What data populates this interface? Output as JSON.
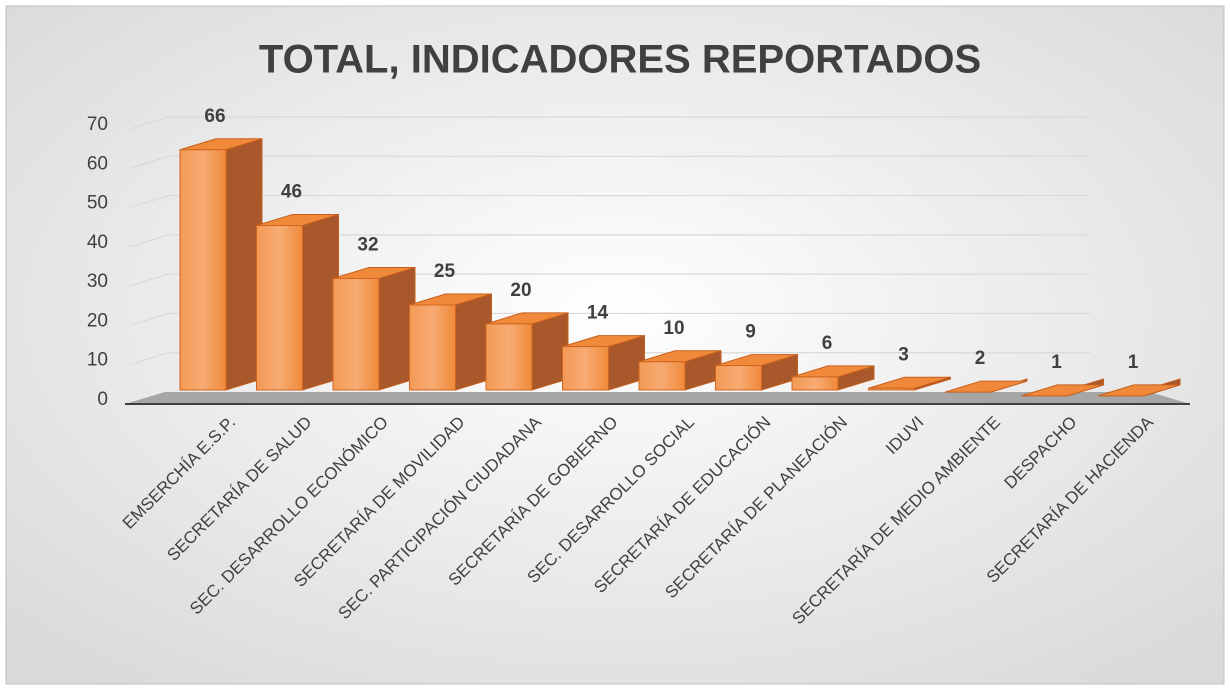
{
  "chart_data": {
    "type": "bar3d",
    "title": "TOTAL, INDICADORES REPORTADOS",
    "categories": [
      "EMSERCHÍA E.S.P.",
      "SECRETARÍA DE SALUD",
      "SEC. DESARROLLO ECONÓMICO",
      "SECRETARÍA DE MOVILIDAD",
      "SEC. PARTICIPACIÓN CIUDADANA",
      "SECRETARÍA DE GOBIERNO",
      "SEC. DESARROLLO SOCIAL",
      "SECRETARÍA DE EDUCACIÓN",
      "SECRETARÍA DE PLANEACIÓN",
      "IDUVI",
      "SECRETARÍA DE MEDIO AMBIENTE",
      "DESPACHO",
      "SECRETARÍA DE HACIENDA"
    ],
    "values": [
      66,
      46,
      32,
      25,
      20,
      14,
      10,
      9,
      6,
      3,
      2,
      1,
      1
    ],
    "color": "#f0883a",
    "ylim": [
      0,
      70
    ],
    "yticks": [
      0,
      10,
      20,
      30,
      40,
      50,
      60,
      70
    ],
    "grid": true
  }
}
